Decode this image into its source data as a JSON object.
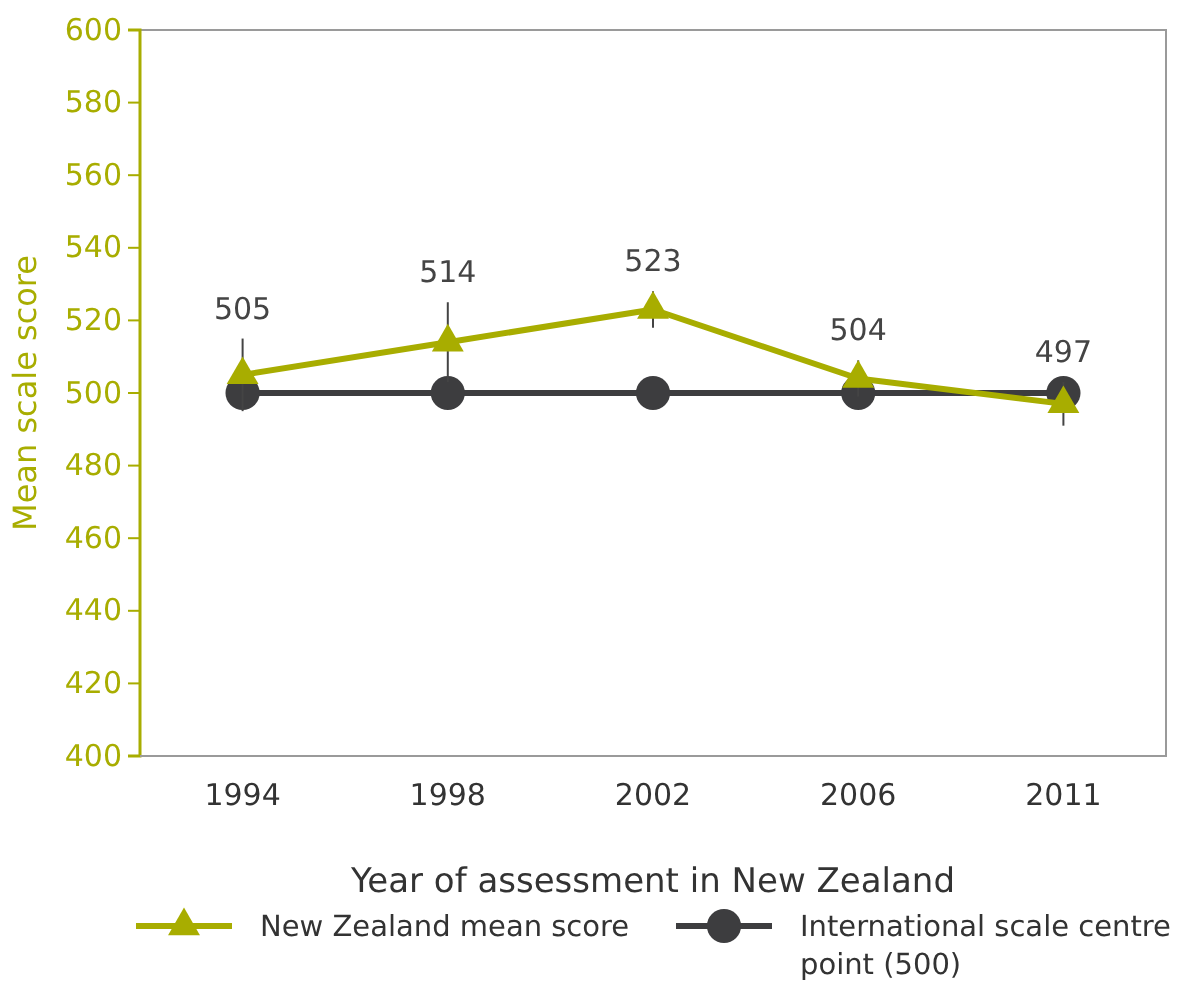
{
  "chart_data": {
    "type": "line",
    "xlabel": "Year of assessment in New Zealand",
    "ylabel": "Mean scale score",
    "categories": [
      "1994",
      "1998",
      "2002",
      "2006",
      "2011"
    ],
    "series": [
      {
        "name": "New Zealand mean score",
        "color": "#a8ad00",
        "values": [
          505,
          514,
          523,
          504,
          497
        ],
        "errors": [
          10,
          11,
          5,
          5,
          6
        ],
        "marker": "triangle",
        "data_labels": true
      },
      {
        "name": "International scale centre point (500)",
        "color": "#3d3d3f",
        "values": [
          500,
          500,
          500,
          500,
          500
        ],
        "marker": "circle"
      }
    ],
    "ylim": [
      400,
      600
    ],
    "yticks": [
      400,
      420,
      440,
      460,
      480,
      500,
      520,
      540,
      560,
      580,
      600
    ],
    "grid": false,
    "legend": "bottom",
    "line_style": "solid"
  }
}
